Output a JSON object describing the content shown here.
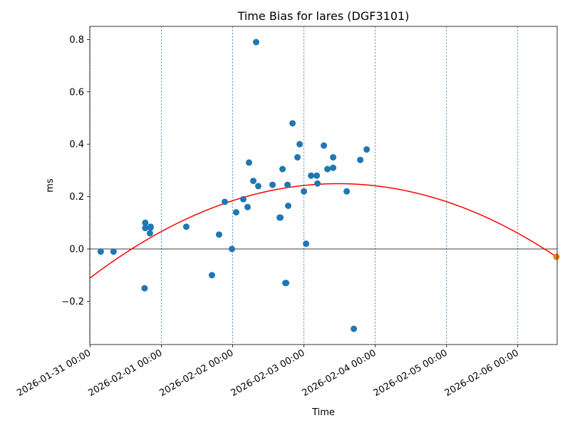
{
  "chart_data": {
    "type": "scatter",
    "title": "Time Bias for lares (DGF3101)",
    "xlabel": "Time",
    "ylabel": "ms",
    "x_range": [
      "2026-01-30T23:55:00",
      "2026-02-06T13:15:00"
    ],
    "ylim": [
      -0.365,
      0.85
    ],
    "y_ticks": [
      -0.2,
      0.0,
      0.2,
      0.4,
      0.6,
      0.8
    ],
    "y_tick_labels": [
      "−0.2",
      "0.0",
      "0.2",
      "0.4",
      "0.6",
      "0.8"
    ],
    "x_ticks": [
      "2026-01-31T00:00:00",
      "2026-02-01T00:00:00",
      "2026-02-02T00:00:00",
      "2026-02-03T00:00:00",
      "2026-02-04T00:00:00",
      "2026-02-05T00:00:00",
      "2026-02-06T00:00:00"
    ],
    "x_tick_labels": [
      "2026-01-31 00:00",
      "2026-02-01 00:00",
      "2026-02-02 00:00",
      "2026-02-03 00:00",
      "2026-02-04 00:00",
      "2026-02-05 00:00",
      "2026-02-06 00:00"
    ],
    "vertical_gridlines": true,
    "zero_line": true,
    "series": [
      {
        "kind": "scatter",
        "color": "#1f77b4",
        "points": [
          {
            "x": "2026-01-31T03:36",
            "y": -0.01
          },
          {
            "x": "2026-01-31T07:55",
            "y": -0.01
          },
          {
            "x": "2026-01-31T18:36",
            "y": 0.1
          },
          {
            "x": "2026-01-31T18:36",
            "y": 0.08
          },
          {
            "x": "2026-01-31T18:22",
            "y": -0.15
          },
          {
            "x": "2026-01-31T20:24",
            "y": 0.085
          },
          {
            "x": "2026-01-31T20:24",
            "y": 0.082
          },
          {
            "x": "2026-01-31T20:10",
            "y": 0.06
          },
          {
            "x": "2026-02-01T08:24",
            "y": 0.085
          },
          {
            "x": "2026-02-01T17:02",
            "y": -0.1
          },
          {
            "x": "2026-02-01T19:26",
            "y": 0.055
          },
          {
            "x": "2026-02-01T21:22",
            "y": 0.18
          },
          {
            "x": "2026-02-01T23:46",
            "y": 0.0
          },
          {
            "x": "2026-02-02T01:12",
            "y": 0.14
          },
          {
            "x": "2026-02-02T03:36",
            "y": 0.19
          },
          {
            "x": "2026-02-02T05:02",
            "y": 0.16
          },
          {
            "x": "2026-02-02T05:31",
            "y": 0.33
          },
          {
            "x": "2026-02-02T06:58",
            "y": 0.26
          },
          {
            "x": "2026-02-02T07:55",
            "y": 0.79
          },
          {
            "x": "2026-02-02T08:38",
            "y": 0.24
          },
          {
            "x": "2026-02-02T13:26",
            "y": 0.245
          },
          {
            "x": "2026-02-02T15:50",
            "y": 0.12
          },
          {
            "x": "2026-02-02T16:05",
            "y": 0.12
          },
          {
            "x": "2026-02-02T16:48",
            "y": 0.305
          },
          {
            "x": "2026-02-02T17:46",
            "y": -0.13
          },
          {
            "x": "2026-02-02T18:00",
            "y": -0.13
          },
          {
            "x": "2026-02-02T18:29",
            "y": 0.245
          },
          {
            "x": "2026-02-02T18:43",
            "y": 0.165
          },
          {
            "x": "2026-02-02T20:10",
            "y": 0.48
          },
          {
            "x": "2026-02-02T21:50",
            "y": 0.35
          },
          {
            "x": "2026-02-02T22:34",
            "y": 0.4
          },
          {
            "x": "2026-02-03T00:00",
            "y": 0.22
          },
          {
            "x": "2026-02-03T00:43",
            "y": 0.02
          },
          {
            "x": "2026-02-03T02:24",
            "y": 0.28
          },
          {
            "x": "2026-02-03T04:19",
            "y": 0.28
          },
          {
            "x": "2026-02-03T04:34",
            "y": 0.25
          },
          {
            "x": "2026-02-03T06:43",
            "y": 0.395
          },
          {
            "x": "2026-02-03T07:55",
            "y": 0.305
          },
          {
            "x": "2026-02-03T09:50",
            "y": 0.35
          },
          {
            "x": "2026-02-03T09:50",
            "y": 0.31
          },
          {
            "x": "2026-02-03T16:48",
            "y": -0.305
          },
          {
            "x": "2026-02-03T14:24",
            "y": 0.22
          },
          {
            "x": "2026-02-03T18:58",
            "y": 0.34
          },
          {
            "x": "2026-02-03T21:07",
            "y": 0.38
          }
        ]
      },
      {
        "kind": "scatter",
        "color": "#ff7f0e",
        "points": [
          {
            "x": "2026-02-06T13:00",
            "y": -0.03
          }
        ]
      },
      {
        "kind": "line",
        "color": "#ff0000",
        "fit": "quadratic",
        "points": [
          {
            "x": "2026-01-31T00:00",
            "y": -0.11
          },
          {
            "x": "2026-02-01T00:00",
            "y": 0.065
          },
          {
            "x": "2026-02-03T10:00",
            "y": 0.25
          },
          {
            "x": "2026-02-06T13:00",
            "y": -0.03
          }
        ]
      }
    ]
  }
}
